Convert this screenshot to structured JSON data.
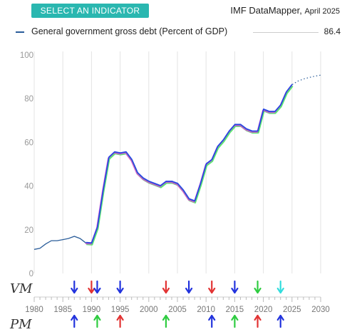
{
  "header": {
    "select_button_label": "SELECT AN INDICATOR",
    "source_name": "IMF DataMapper,",
    "source_date": "April 2025"
  },
  "legend": {
    "label": "General government gross debt (Percent of GDP)",
    "value": "86.4"
  },
  "annotations": {
    "row1_label": "VM",
    "row2_label": "PM"
  },
  "colors": {
    "history": "#2a5d9a",
    "forecast": "#2a5d9a",
    "overlay_blue": "#1e3fe6",
    "overlay_green": "#3ee05a",
    "overlay_pink": "#e04fd0",
    "overlay_red": "#e63030",
    "arrow_blue": "#2233dd",
    "arrow_red": "#e23333",
    "arrow_green": "#2ecc40",
    "arrow_cyan": "#33dddd"
  },
  "chart_data": {
    "type": "line",
    "title": "",
    "xlabel": "",
    "ylabel": "",
    "xlim": [
      1980,
      2030
    ],
    "ylim": [
      0,
      100
    ],
    "y_ticks": [
      0,
      20,
      40,
      60,
      80,
      100
    ],
    "x_ticks": [
      1980,
      1985,
      1990,
      1995,
      2000,
      2005,
      2010,
      2015,
      2020,
      2025,
      2030
    ],
    "grid": "vertical",
    "legend_position": "top",
    "series": [
      {
        "name": "General government gross debt (Percent of GDP)",
        "style": "solid",
        "x": [
          1980,
          1981,
          1982,
          1983,
          1984,
          1985,
          1986,
          1987,
          1988,
          1989,
          1990,
          1991,
          1992,
          1993,
          1994,
          1995,
          1996,
          1997,
          1998,
          1999,
          2000,
          2001,
          2002,
          2003,
          2004,
          2005,
          2006,
          2007,
          2008,
          2009,
          2010,
          2011,
          2012,
          2013,
          2014,
          2015,
          2016,
          2017,
          2018,
          2019,
          2020,
          2021,
          2022,
          2023,
          2024
        ],
        "values": [
          11,
          11.5,
          13.5,
          15,
          15,
          15.5,
          16,
          17,
          16,
          14,
          13.8,
          21,
          38,
          53,
          55.5,
          55,
          55.5,
          52,
          46,
          43.5,
          42,
          41,
          40,
          42,
          42,
          41,
          38,
          34,
          33,
          41,
          50,
          52,
          58,
          61,
          65,
          68,
          68,
          66,
          65,
          65,
          75,
          74,
          74,
          77,
          83
        ]
      },
      {
        "name": "",
        "style": "dotted",
        "x": [
          2024,
          2025,
          2026,
          2027,
          2028,
          2029,
          2030
        ],
        "values": [
          83,
          86.4,
          88,
          89,
          89.7,
          90.3,
          90.8
        ]
      }
    ],
    "markers": {
      "vm": [
        {
          "year": 1987,
          "color": "blue",
          "dir": "down"
        },
        {
          "year": 1990,
          "color": "red",
          "dir": "down"
        },
        {
          "year": 1991,
          "color": "blue",
          "dir": "down"
        },
        {
          "year": 1995,
          "color": "blue",
          "dir": "down"
        },
        {
          "year": 2003,
          "color": "red",
          "dir": "down"
        },
        {
          "year": 2007,
          "color": "blue",
          "dir": "down"
        },
        {
          "year": 2011,
          "color": "red",
          "dir": "down"
        },
        {
          "year": 2015,
          "color": "blue",
          "dir": "down"
        },
        {
          "year": 2019,
          "color": "green",
          "dir": "down"
        },
        {
          "year": 2023,
          "color": "cyan",
          "dir": "down"
        }
      ],
      "pm": [
        {
          "year": 1987,
          "color": "blue",
          "dir": "up"
        },
        {
          "year": 1991,
          "color": "green",
          "dir": "up"
        },
        {
          "year": 1995,
          "color": "red",
          "dir": "up"
        },
        {
          "year": 2003,
          "color": "green",
          "dir": "up"
        },
        {
          "year": 2011,
          "color": "blue",
          "dir": "up"
        },
        {
          "year": 2015,
          "color": "green",
          "dir": "up"
        },
        {
          "year": 2019,
          "color": "red",
          "dir": "up"
        },
        {
          "year": 2023,
          "color": "blue",
          "dir": "up"
        }
      ]
    }
  }
}
